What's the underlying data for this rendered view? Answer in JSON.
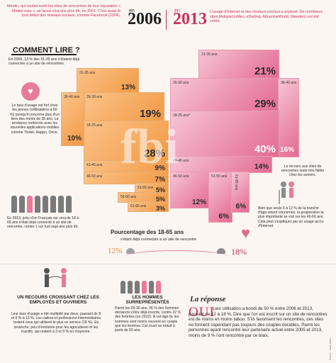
{
  "intro_left": "Meetic, qui voulait sortir les sites de rencontres de leur réputation « Minitel rose », se lance cinq ans plus tôt, en 2001. C'est aussi le tout début des réseaux sociaux, comme Facebook (2004).",
  "year_2006": "2006",
  "year_2013": "2013",
  "year_prefix": "en",
  "intro_right": "L'usage d'Internet et des réseaux sociaux a explosé. De nombreux sites (AdopteUnMec, eDarling, AttractiveWorld, Gleeden) ont été créés.",
  "comment_lire": "COMMENT LIRE ?",
  "comment_text": "En 2006, 13 % des 31-35 ans s'étaient déjà connectés à un site de rencontres.",
  "side_text": "Le taux d'usage est fort chez les jeunes (célibataires à 60 %) puisqu'il concerne plus d'un tiers des moins de 35 ans. La tendance renforcée avec les nouvelles applications mobiles comme Tinder, Happn, Once.",
  "blocks_2006": [
    {
      "label": "31-35 ans",
      "value": "13%"
    },
    {
      "label": "26-30 ans",
      "value": "19%"
    },
    {
      "label": "36-40 ans",
      "value": "10%"
    },
    {
      "label": "18-25 ans",
      "value": "28%"
    },
    {
      "label": "41-45 ans",
      "value": "9%"
    },
    {
      "label": "46-50 ans",
      "value": "7%"
    },
    {
      "label": "51-55 ans",
      "value": "5%"
    },
    {
      "label": "56-60 ans",
      "value": "5%"
    },
    {
      "label": "61-65 ans",
      "value": "3%"
    }
  ],
  "blocks_2013": [
    {
      "label": "31-35 ans",
      "value": "21%"
    },
    {
      "label": "26-30 ans",
      "value": "29%"
    },
    {
      "label": "36-40 ans",
      "value": "16%"
    },
    {
      "label": "18-25 ans*",
      "value": "40%"
    },
    {
      "label": "41-45 ans",
      "value": "14%"
    },
    {
      "label": "46-50 ans",
      "value": "12%"
    },
    {
      "label": "51-55 ans",
      "value": "6%"
    },
    {
      "label": "61-65 ans",
      "value": "6%"
    }
  ],
  "people_2013": "En 2013, près d'un Français sur cinq de 18 à 65 ans s'était déjà connecté à un site de rencontre, contre 1 sur huit sept ans plus tôt.",
  "right_box": "Le recours aux sites de rencontres reste très faible chez les seniors.",
  "right_bottom": "Bien que seuls 6 à 12 % de la tranche d'âge soient concernés, la progression la plus importante se voit sur les 46-60 ans. Cela peut s'expliquer par un usage accru d'Internet.",
  "pct_title": "Pourcentage des 18-65 ans",
  "pct_sub": "s'étant déjà connectés à un site de rencontre",
  "pct_2006": "12%",
  "pct_2013": "18%",
  "bottom1_title": "UN RECOURS CROISSANT CHEZ LES EMPLOYÉS ET OUVRIERS",
  "bottom1_text": "Leur taux d'usage a été multiplié par deux, passant de 8 et 6 % à 13 %. Les cadres et professions intermédiaires restent ceux qui utilisent le plus ce service (18 %). En revanche, peu d'évolution pour les agriculteurs et les inactifs, qui restent à 3 et 9 % en moyenne.",
  "bottom2_title": "LES HOMMES SURREPRÉSENTÉS",
  "bottom2_text": "Parmi les 26-30 ans, 36 % des hommes déclarent s'être déjà inscrits, contre 22 % des femmes (en 2013). À cet âge-là, les hommes sont moins souvent en couple que les femmes. Cet écart se réduit à partir de 50 ans.",
  "la_reponse": "La réponse",
  "oui": "OUI",
  "reponse_text": "Leur utilisation a bondi de 50 % entre 2006 et 2013, passant de 12 à 18 %. Dire que l'on est inscrit sur un site de rencontres est de moins en moins tabou. S'ils favorisent les rencontres, ces sites ne forment cependant pas toujours des couples durables. Parmi les personnes ayant rencontré leur partenaire actuel entre 2005 et 2013, moins de 9 % l'ont rencontré par ce biais.",
  "credit": "Source : Ined, Insee",
  "watermark": "fbi",
  "colors": {
    "accent": "#c8325a",
    "orange": "#f29a45",
    "pink": "#e36a92"
  }
}
